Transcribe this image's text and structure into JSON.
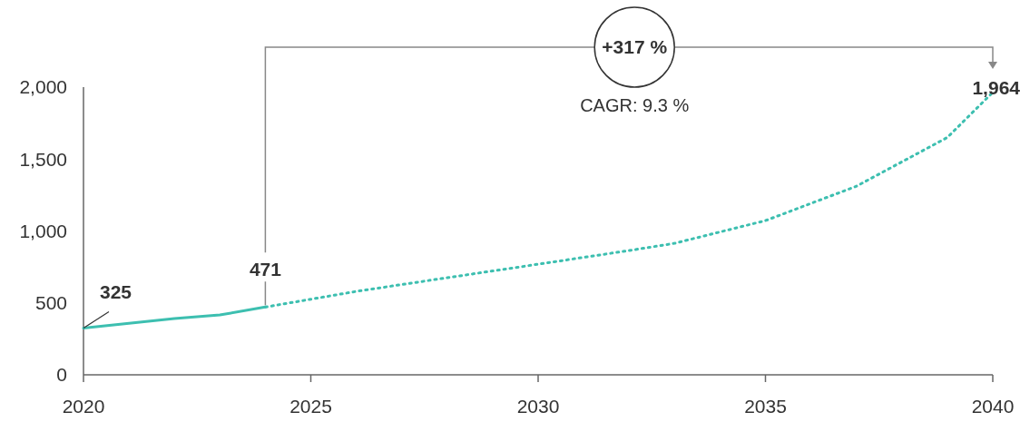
{
  "chart_data": {
    "type": "line",
    "annotations": [
      "+317 %",
      "CAGR: 9.3 %"
    ],
    "xlim": [
      2020,
      2040
    ],
    "xticks": [
      2020,
      2025,
      2030,
      2035,
      2040
    ],
    "ylim": [
      0,
      2000
    ],
    "yticks": [
      0,
      {
        "value": 500,
        "label": "500"
      },
      {
        "value": 1000,
        "label": "1,000"
      },
      {
        "value": 1500,
        "label": "1,500"
      },
      {
        "value": 2000,
        "label": "2,000"
      }
    ],
    "grid": false,
    "marker": "none",
    "series": [
      {
        "color": "#3dbfb0",
        "line_style": "solid",
        "x": [
          2020,
          2022,
          2023,
          2024
        ],
        "values": [
          325,
          391,
          416,
          471
        ],
        "value_labels": [
          "325",
          null,
          null,
          "471"
        ]
      },
      {
        "color": "#3dbfb0",
        "line_style": "dotted",
        "x": [
          2024,
          2026,
          2028,
          2030,
          2032,
          2033,
          2035,
          2037,
          2039,
          2040
        ],
        "values": [
          471,
          580,
          675,
          769,
          864,
          914,
          1072,
          1311,
          1650,
          1964
        ],
        "value_labels": [
          null,
          null,
          null,
          null,
          null,
          null,
          null,
          null,
          null,
          "1,964"
        ]
      }
    ]
  }
}
